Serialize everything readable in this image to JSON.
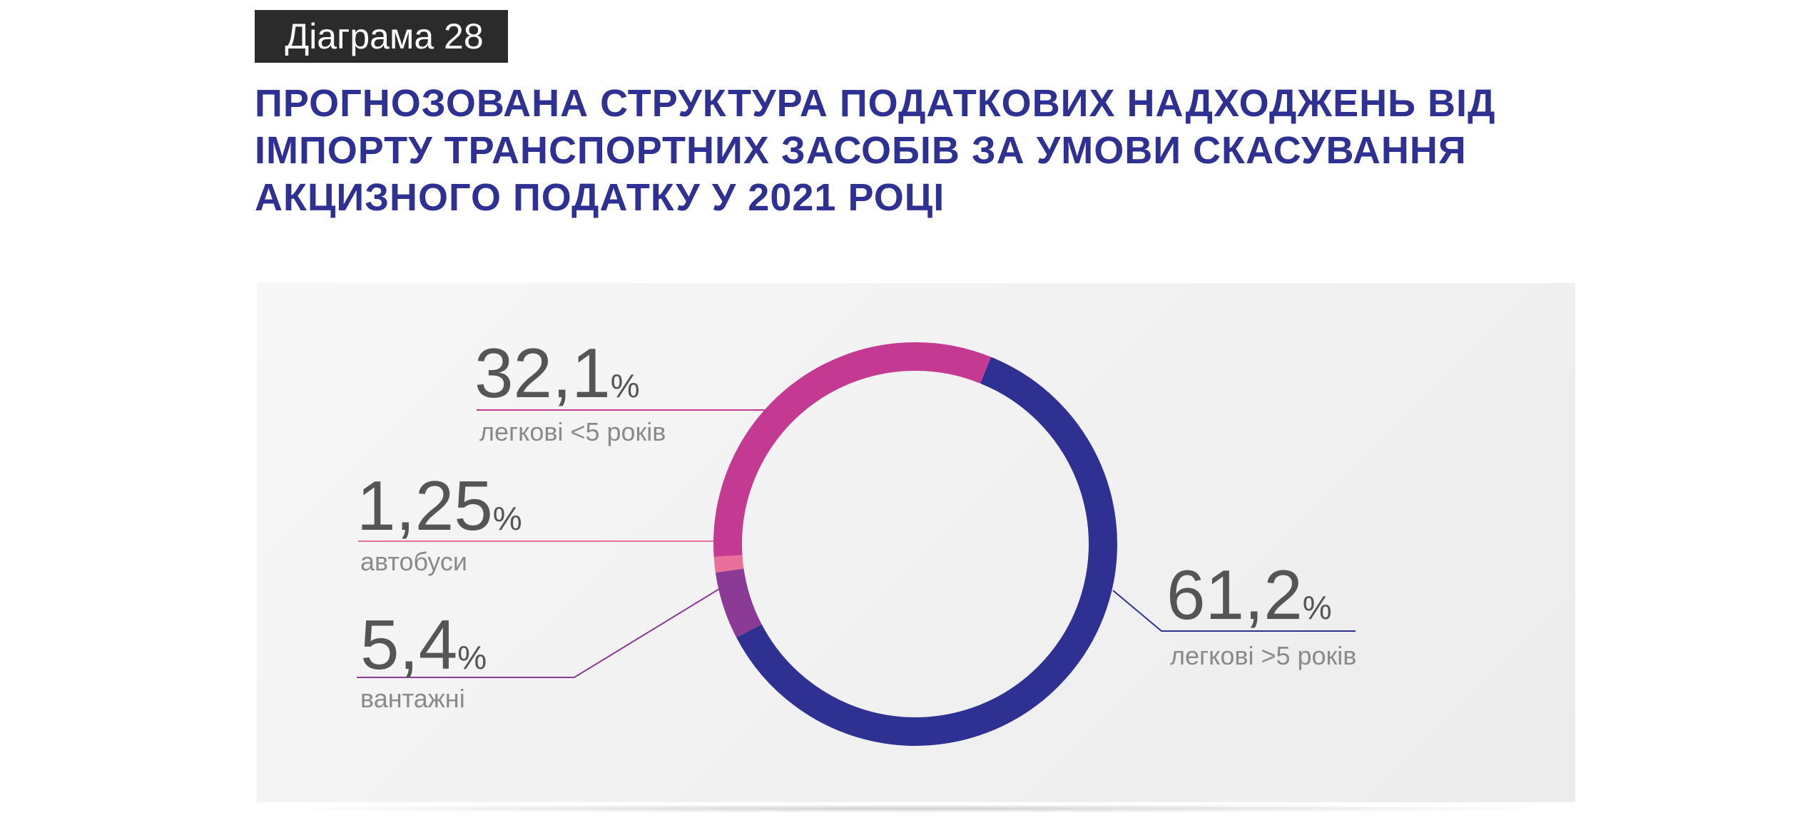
{
  "badge": "Діаграма 28",
  "title_lines": [
    "ПРОГНОЗОВАНА СТРУКТУРА ПОДАТКОВИХ НАДХОДЖЕНЬ ВІД",
    "ІМПОРТУ ТРАНСПОРТНИХ ЗАСОБІВ ЗА УМОВИ СКАСУВАННЯ",
    "АКЦИЗНОГО ПОДАТКУ У 2021 РОЦІ"
  ],
  "chart_data": {
    "type": "pie",
    "style": "donut",
    "title": "ПРОГНОЗОВАНА СТРУКТУРА ПОДАТКОВИХ НАДХОДЖЕНЬ ВІД ІМПОРТУ ТРАНСПОРТНИХ ЗАСОБІВ ЗА УМОВИ СКАСУВАННЯ АКЦИЗНОГО ПОДАТКУ У 2021 РОЦІ",
    "unit": "%",
    "slices": [
      {
        "label": "легкові >5 років",
        "value": 61.2,
        "value_text": "61,2",
        "color": "#2e3192"
      },
      {
        "label": "вантажні",
        "value": 5.4,
        "value_text": "5,4",
        "color": "#8b3a96"
      },
      {
        "label": "автобуси",
        "value": 1.25,
        "value_text": "1,25",
        "color": "#e8709a"
      },
      {
        "label": "легкові <5 років",
        "value": 32.1,
        "value_text": "32,1",
        "color": "#c43a92"
      }
    ]
  }
}
